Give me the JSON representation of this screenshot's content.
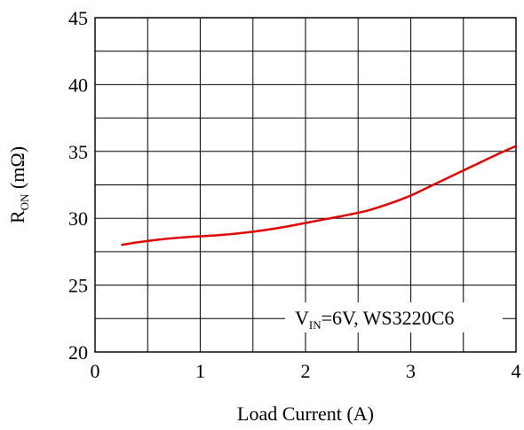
{
  "chart_data": {
    "type": "line",
    "xlabel": "Load Current (A)",
    "ylabel_main": "R",
    "ylabel_sub": "ON",
    "ylabel_unit": " (mΩ)",
    "xlim": [
      0,
      4
    ],
    "ylim": [
      20,
      45
    ],
    "x_ticks": [
      "0",
      "1",
      "2",
      "3",
      "4"
    ],
    "y_ticks": [
      "20",
      "25",
      "30",
      "35",
      "40",
      "45"
    ],
    "grid": true,
    "line_color": "#e00000",
    "annotation": {
      "main": "V",
      "sub": "IN",
      "rest": "=6V, WS3220C6"
    },
    "series": [
      {
        "x": [
          0.25,
          0.4,
          0.6,
          0.8,
          1.0,
          1.2,
          1.4,
          1.6,
          1.8,
          2.0,
          2.2,
          2.4,
          2.6,
          2.8,
          3.0,
          3.2,
          3.4,
          3.6,
          3.8,
          4.0
        ],
        "values": [
          28.0,
          28.2,
          28.4,
          28.55,
          28.65,
          28.75,
          28.9,
          29.1,
          29.35,
          29.65,
          29.95,
          30.25,
          30.6,
          31.1,
          31.7,
          32.45,
          33.2,
          33.95,
          34.7,
          35.4
        ]
      }
    ]
  }
}
